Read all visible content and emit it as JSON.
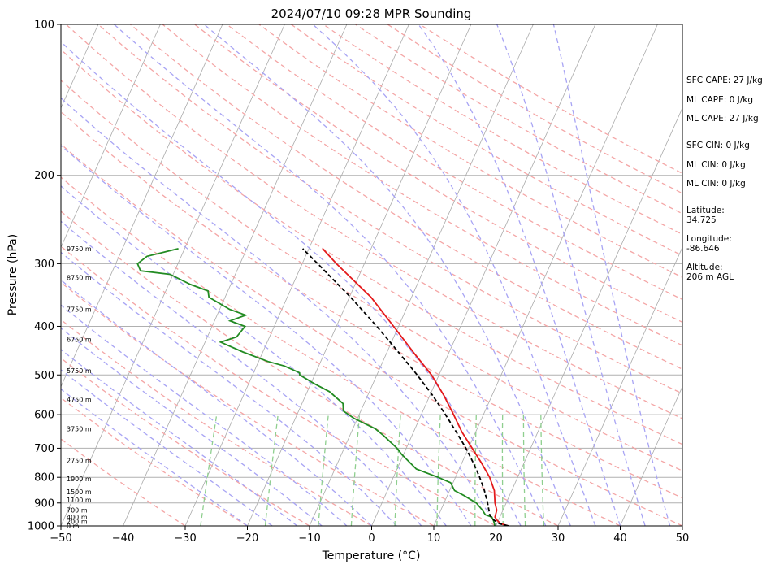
{
  "chart_data": {
    "type": "skew-t",
    "title": "2024/07/10 09:28 MPR Sounding",
    "xlabel": "Temperature (°C)",
    "ylabel": "Pressure (hPa)",
    "xlim": [
      -50,
      50
    ],
    "ylim": [
      1000,
      100
    ],
    "y_scale": "log",
    "grid": true,
    "x_ticks": [
      "−50",
      "−40",
      "−30",
      "−20",
      "−10",
      "0",
      "10",
      "20",
      "30",
      "40",
      "50"
    ],
    "y_ticks": [
      "100",
      "200",
      "300",
      "400",
      "500",
      "600",
      "700",
      "800",
      "900",
      "1000"
    ],
    "height_labels": [
      {
        "text": "9750 m",
        "p": 280
      },
      {
        "text": "8750 m",
        "p": 320
      },
      {
        "text": "7750 m",
        "p": 370
      },
      {
        "text": "6750 m",
        "p": 425
      },
      {
        "text": "5750 m",
        "p": 490
      },
      {
        "text": "4750 m",
        "p": 560
      },
      {
        "text": "3750 m",
        "p": 640
      },
      {
        "text": "2750 m",
        "p": 740
      },
      {
        "text": "1900 m",
        "p": 805
      },
      {
        "text": "1500 m",
        "p": 855
      },
      {
        "text": "1100 m",
        "p": 888
      },
      {
        "text": "700 m",
        "p": 930
      },
      {
        "text": "400 m",
        "p": 960
      },
      {
        "text": "200 m",
        "p": 980
      },
      {
        "text": "0 m",
        "p": 1000
      }
    ],
    "series": [
      {
        "type": "temperature",
        "color": "#e41a1c",
        "points": [
          [
            1000,
            22.0
          ],
          [
            990,
            20.6
          ],
          [
            975,
            19.8
          ],
          [
            960,
            19.2
          ],
          [
            930,
            19.0
          ],
          [
            900,
            18.2
          ],
          [
            850,
            17.2
          ],
          [
            800,
            15.5
          ],
          [
            750,
            13.2
          ],
          [
            700,
            10.6
          ],
          [
            650,
            7.8
          ],
          [
            600,
            5.2
          ],
          [
            550,
            2.3
          ],
          [
            500,
            -1.2
          ],
          [
            450,
            -5.8
          ],
          [
            400,
            -10.8
          ],
          [
            350,
            -16.5
          ],
          [
            300,
            -24.5
          ],
          [
            280,
            -27.8
          ]
        ]
      },
      {
        "type": "dewpoint",
        "color": "#228b22",
        "points": [
          [
            1000,
            19.8
          ],
          [
            990,
            19.6
          ],
          [
            975,
            19.2
          ],
          [
            960,
            18.7
          ],
          [
            950,
            17.5
          ],
          [
            930,
            16.7
          ],
          [
            900,
            15.2
          ],
          [
            870,
            12.7
          ],
          [
            850,
            10.8
          ],
          [
            820,
            9.6
          ],
          [
            800,
            7.2
          ],
          [
            770,
            3.1
          ],
          [
            720,
            -0.3
          ],
          [
            700,
            -1.5
          ],
          [
            660,
            -4.6
          ],
          [
            640,
            -6.4
          ],
          [
            610,
            -10.6
          ],
          [
            590,
            -12.8
          ],
          [
            570,
            -13.4
          ],
          [
            540,
            -16.4
          ],
          [
            520,
            -19.5
          ],
          [
            500,
            -22.4
          ],
          [
            495,
            -22.6
          ],
          [
            480,
            -25.5
          ],
          [
            470,
            -28.5
          ],
          [
            450,
            -33.2
          ],
          [
            430,
            -37.5
          ],
          [
            420,
            -35.3
          ],
          [
            400,
            -34.7
          ],
          [
            390,
            -37.5
          ],
          [
            380,
            -35.4
          ],
          [
            370,
            -38.4
          ],
          [
            350,
            -42.6
          ],
          [
            340,
            -43.2
          ],
          [
            330,
            -46.5
          ],
          [
            315,
            -50.5
          ],
          [
            310,
            -55.5
          ],
          [
            300,
            -56.5
          ],
          [
            290,
            -55.5
          ],
          [
            280,
            -51.0
          ]
        ]
      },
      {
        "type": "parcel",
        "color": "#000000",
        "points": [
          [
            1000,
            22.0
          ],
          [
            990,
            20.4
          ],
          [
            970,
            19.0
          ],
          [
            950,
            18.2
          ],
          [
            900,
            17.0
          ],
          [
            850,
            15.6
          ],
          [
            800,
            13.9
          ],
          [
            750,
            11.9
          ],
          [
            700,
            9.6
          ],
          [
            650,
            6.9
          ],
          [
            600,
            3.9
          ],
          [
            550,
            0.5
          ],
          [
            500,
            -3.5
          ],
          [
            450,
            -8.2
          ],
          [
            400,
            -13.5
          ],
          [
            350,
            -19.8
          ],
          [
            300,
            -27.5
          ],
          [
            280,
            -31.0
          ]
        ]
      }
    ],
    "stats": {
      "sfc_cape": "SFC CAPE: 27 J/kg",
      "ml_cape_1": "ML CAPE: 0 J/kg",
      "ml_cape_2": "ML CAPE: 27 J/kg",
      "sfc_cin": "SFC CIN: 0 J/kg",
      "ml_cin_1": "ML CIN: 0 J/kg",
      "ml_cin_2": "ML CIN: 0 J/kg",
      "latitude_label": "Latitude:",
      "latitude_value": "34.725",
      "longitude_label": "Longitude:",
      "longitude_value": "-86.646",
      "altitude_label": "Altitude:",
      "altitude_value": "206 m AGL"
    },
    "colors": {
      "isobar": "#b0b0b0",
      "isotherm": "#aaaaaa",
      "dry_adiabat": "#f4a6a6",
      "moist_adiabat": "#a8a4f4",
      "mixing_ratio": "#8fcf8f"
    }
  }
}
